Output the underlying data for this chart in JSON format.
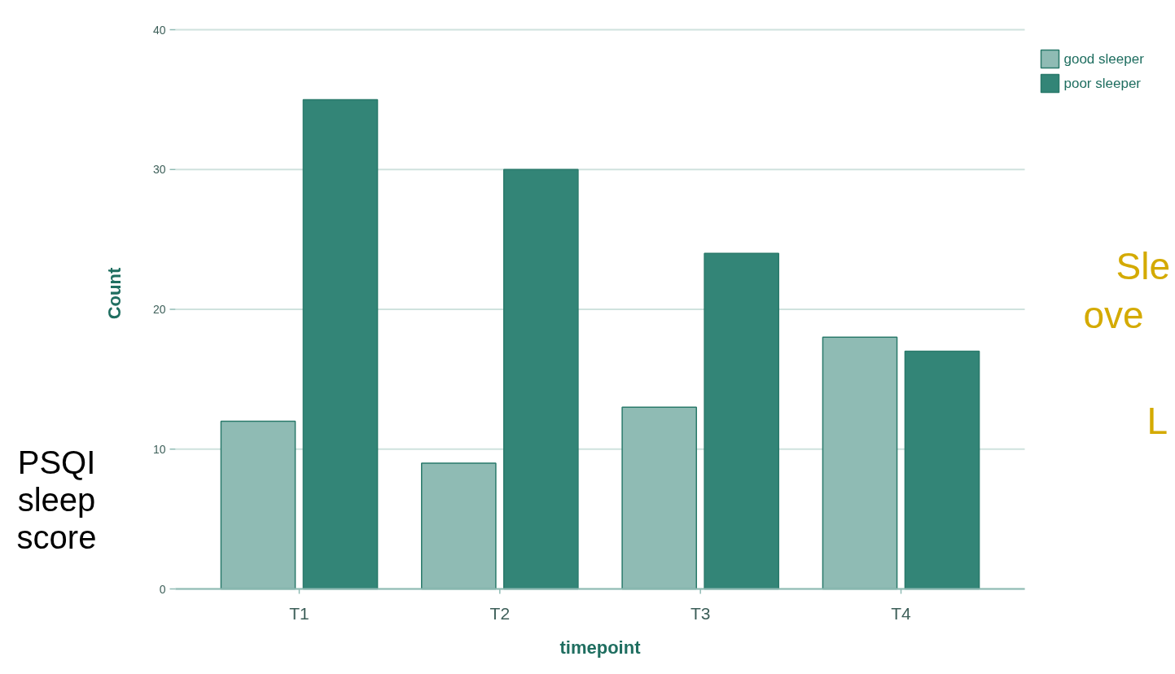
{
  "chart_data": {
    "type": "bar",
    "xlabel": "timepoint",
    "ylabel": "Count",
    "categories": [
      "T1",
      "T2",
      "T3",
      "T4"
    ],
    "series": [
      {
        "name": "good sleeper",
        "color": "#8fbbb4",
        "values": [
          12,
          9,
          13,
          18
        ]
      },
      {
        "name": "poor sleeper",
        "color": "#338577",
        "values": [
          35,
          30,
          24,
          17
        ]
      }
    ],
    "ylim": [
      0,
      40
    ],
    "yticks": [
      0,
      10,
      20,
      30,
      40
    ],
    "grid": "y",
    "legend": "top right",
    "annotations": [
      "PSQI sleep score",
      "Sle",
      "ove",
      "L"
    ]
  }
}
